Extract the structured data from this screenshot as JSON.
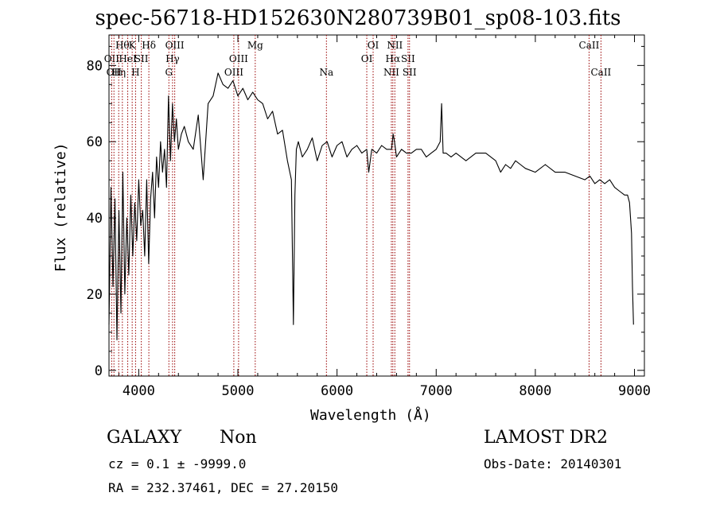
{
  "header": {
    "title": "spec-56718-HD152630N280739B01_sp08-103.fits"
  },
  "footer": {
    "class_label": "GALAXY",
    "subclass_label": "Non",
    "cz_text": "cz = 0.1 ± -9999.0",
    "coords_text": "RA = 232.37461, DEC =  27.20150",
    "survey_label": "LAMOST DR2",
    "obs_date_text": "Obs-Date: 20140301"
  },
  "chart_data": {
    "type": "line",
    "title": "spec-56718-HD152630N280739B01_sp08-103.fits",
    "xlabel": "Wavelength (Å)",
    "ylabel": "Flux (relative)",
    "xlim": [
      3700,
      9100
    ],
    "ylim": [
      -1.5,
      88
    ],
    "x_ticks": [
      4000,
      5000,
      6000,
      7000,
      8000,
      9000
    ],
    "y_ticks": [
      0,
      20,
      40,
      60,
      80
    ],
    "grid": false,
    "line_color": "#000000",
    "marker_color": "#990000",
    "series": [
      {
        "values_x": [
          3700,
          3720,
          3740,
          3760,
          3780,
          3800,
          3820,
          3840,
          3860,
          3880,
          3900,
          3920,
          3940,
          3960,
          3980,
          4000,
          4020,
          4040,
          4060,
          4080,
          4100,
          4120,
          4140,
          4160,
          4180,
          4200,
          4220,
          4240,
          4260,
          4280,
          4300,
          4320,
          4340,
          4360,
          4380,
          4400,
          4430,
          4460,
          4500,
          4550,
          4600,
          4650,
          4700,
          4750,
          4800,
          4850,
          4900,
          4950,
          5000,
          5050,
          5100,
          5150,
          5200,
          5250,
          5300,
          5350,
          5400,
          5450,
          5500,
          5540,
          5560,
          5575,
          5590,
          5610,
          5650,
          5700,
          5750,
          5800,
          5850,
          5900,
          5950,
          6000,
          6050,
          6100,
          6150,
          6200,
          6250,
          6300,
          6320,
          6350,
          6400,
          6450,
          6500,
          6550,
          6565,
          6580,
          6600,
          6650,
          6700,
          6750,
          6800,
          6850,
          6900,
          6950,
          7000,
          7040,
          7055,
          7070,
          7100,
          7150,
          7200,
          7300,
          7400,
          7500,
          7600,
          7650,
          7700,
          7750,
          7800,
          7850,
          7900,
          8000,
          8100,
          8200,
          8300,
          8400,
          8500,
          8550,
          8600,
          8650,
          8700,
          8750,
          8800,
          8850,
          8900,
          8930,
          8950,
          8970,
          8980,
          8990
        ],
        "values_y": [
          12,
          48,
          22,
          45,
          8,
          42,
          15,
          52,
          20,
          40,
          25,
          46,
          30,
          44,
          34,
          50,
          38,
          42,
          30,
          50,
          28,
          45,
          52,
          40,
          56,
          48,
          60,
          52,
          58,
          48,
          72,
          55,
          70,
          60,
          66,
          58,
          62,
          64,
          60,
          58,
          67,
          50,
          70,
          72,
          78,
          75,
          74,
          76,
          72,
          74,
          71,
          73,
          71,
          70,
          66,
          68,
          62,
          63,
          55,
          50,
          12,
          46,
          58,
          60,
          56,
          58,
          61,
          55,
          59,
          60,
          56,
          59,
          60,
          56,
          58,
          59,
          57,
          58,
          52,
          58,
          57,
          59,
          58,
          58,
          62,
          60,
          56,
          58,
          57,
          57,
          58,
          58,
          56,
          57,
          58,
          60,
          70,
          57,
          57,
          56,
          57,
          55,
          57,
          57,
          55,
          52,
          54,
          53,
          55,
          54,
          53,
          52,
          54,
          52,
          52,
          51,
          50,
          51,
          49,
          50,
          49,
          50,
          48,
          47,
          46,
          46,
          44,
          36,
          22,
          12
        ]
      }
    ],
    "line_markers": [
      {
        "wavelength": 3727,
        "label": "OII",
        "row": 2
      },
      {
        "wavelength": 3750,
        "label": "OII",
        "row": 3
      },
      {
        "wavelength": 3798,
        "label": "Hη",
        "row": 3
      },
      {
        "wavelength": 3835,
        "label": "Hθ",
        "row": 1
      },
      {
        "wavelength": 3889,
        "label": "HeI",
        "row": 2
      },
      {
        "wavelength": 3934,
        "label": "K",
        "row": 1
      },
      {
        "wavelength": 3968,
        "label": "H",
        "row": 3
      },
      {
        "wavelength": 4026,
        "label": "SII",
        "row": 2
      },
      {
        "wavelength": 4102,
        "label": "Hδ",
        "row": 1
      },
      {
        "wavelength": 4304,
        "label": "G",
        "row": 3
      },
      {
        "wavelength": 4341,
        "label": "Hγ",
        "row": 2
      },
      {
        "wavelength": 4363,
        "label": "OIII",
        "row": 1
      },
      {
        "wavelength": 4959,
        "label": "OIII",
        "row": 3
      },
      {
        "wavelength": 5007,
        "label": "OIII",
        "row": 2
      },
      {
        "wavelength": 5175,
        "label": "Mg",
        "row": 1
      },
      {
        "wavelength": 5893,
        "label": "Na",
        "row": 3
      },
      {
        "wavelength": 6300,
        "label": "OI",
        "row": 2
      },
      {
        "wavelength": 6364,
        "label": "OI",
        "row": 1
      },
      {
        "wavelength": 6548,
        "label": "NII",
        "row": 3
      },
      {
        "wavelength": 6563,
        "label": "Hα",
        "row": 2
      },
      {
        "wavelength": 6583,
        "label": "NII",
        "row": 1
      },
      {
        "wavelength": 6716,
        "label": "SII",
        "row": 2
      },
      {
        "wavelength": 6731,
        "label": "SII",
        "row": 3
      },
      {
        "wavelength": 8542,
        "label": "CaII",
        "row": 1
      },
      {
        "wavelength": 8662,
        "label": "CaII",
        "row": 3
      }
    ]
  }
}
